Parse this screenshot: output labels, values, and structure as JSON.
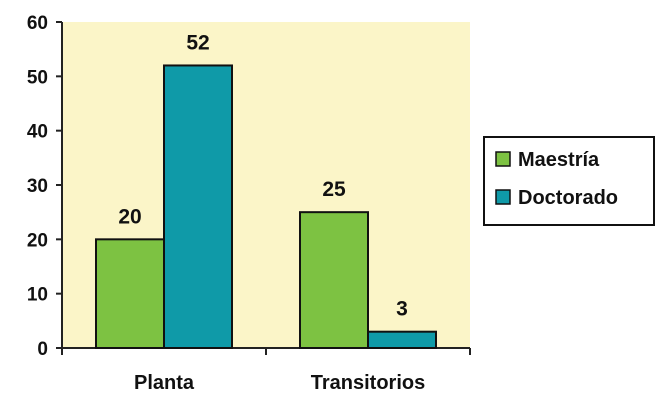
{
  "chart_data": {
    "type": "bar",
    "categories": [
      "Planta",
      "Transitorios"
    ],
    "series": [
      {
        "name": "Maestría",
        "values": [
          20,
          25
        ],
        "color": "#7dc242"
      },
      {
        "name": "Doctorado",
        "values": [
          52,
          3
        ],
        "color": "#0f9aa8"
      }
    ],
    "ylim": [
      0,
      60
    ],
    "yticks": [
      0,
      10,
      20,
      30,
      40,
      50,
      60
    ],
    "title": "",
    "xlabel": "",
    "ylabel": "",
    "legend_position": "right",
    "plot_background": "#fbf5c8",
    "grid": false
  }
}
